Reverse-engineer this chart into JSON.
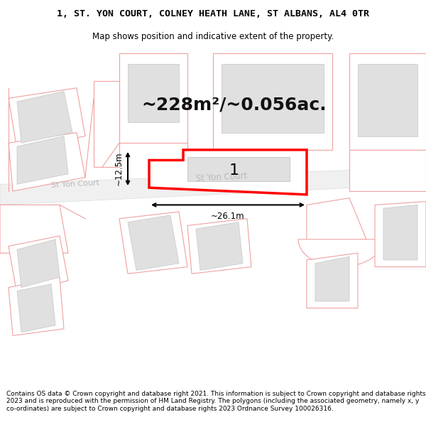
{
  "title_line1": "1, ST. YON COURT, COLNEY HEATH LANE, ST ALBANS, AL4 0TR",
  "title_line2": "Map shows position and indicative extent of the property.",
  "area_text": "~228m²/~0.056ac.",
  "property_label": "1",
  "dim_width": "~26.1m",
  "dim_height": "~12.5m",
  "road_label": "St Yon Court",
  "footer_text": "Contains OS data © Crown copyright and database right 2021. This information is subject to Crown copyright and database rights 2023 and is reproduced with the permission of HM Land Registry. The polygons (including the associated geometry, namely x, y co-ordinates) are subject to Crown copyright and database rights 2023 Ordnance Survey 100026316.",
  "bg_color": "#ffffff",
  "map_bg": "#ffffff",
  "plot_fill": "#ffffff",
  "plot_border": "#ff0000",
  "building_fill": "#e0e0e0",
  "outline_color": "#f0a0a0",
  "parcel_fill": "#ffffff",
  "title_fontsize": 9.5,
  "subtitle_fontsize": 8.5,
  "area_fontsize": 18,
  "footer_fontsize": 6.5
}
